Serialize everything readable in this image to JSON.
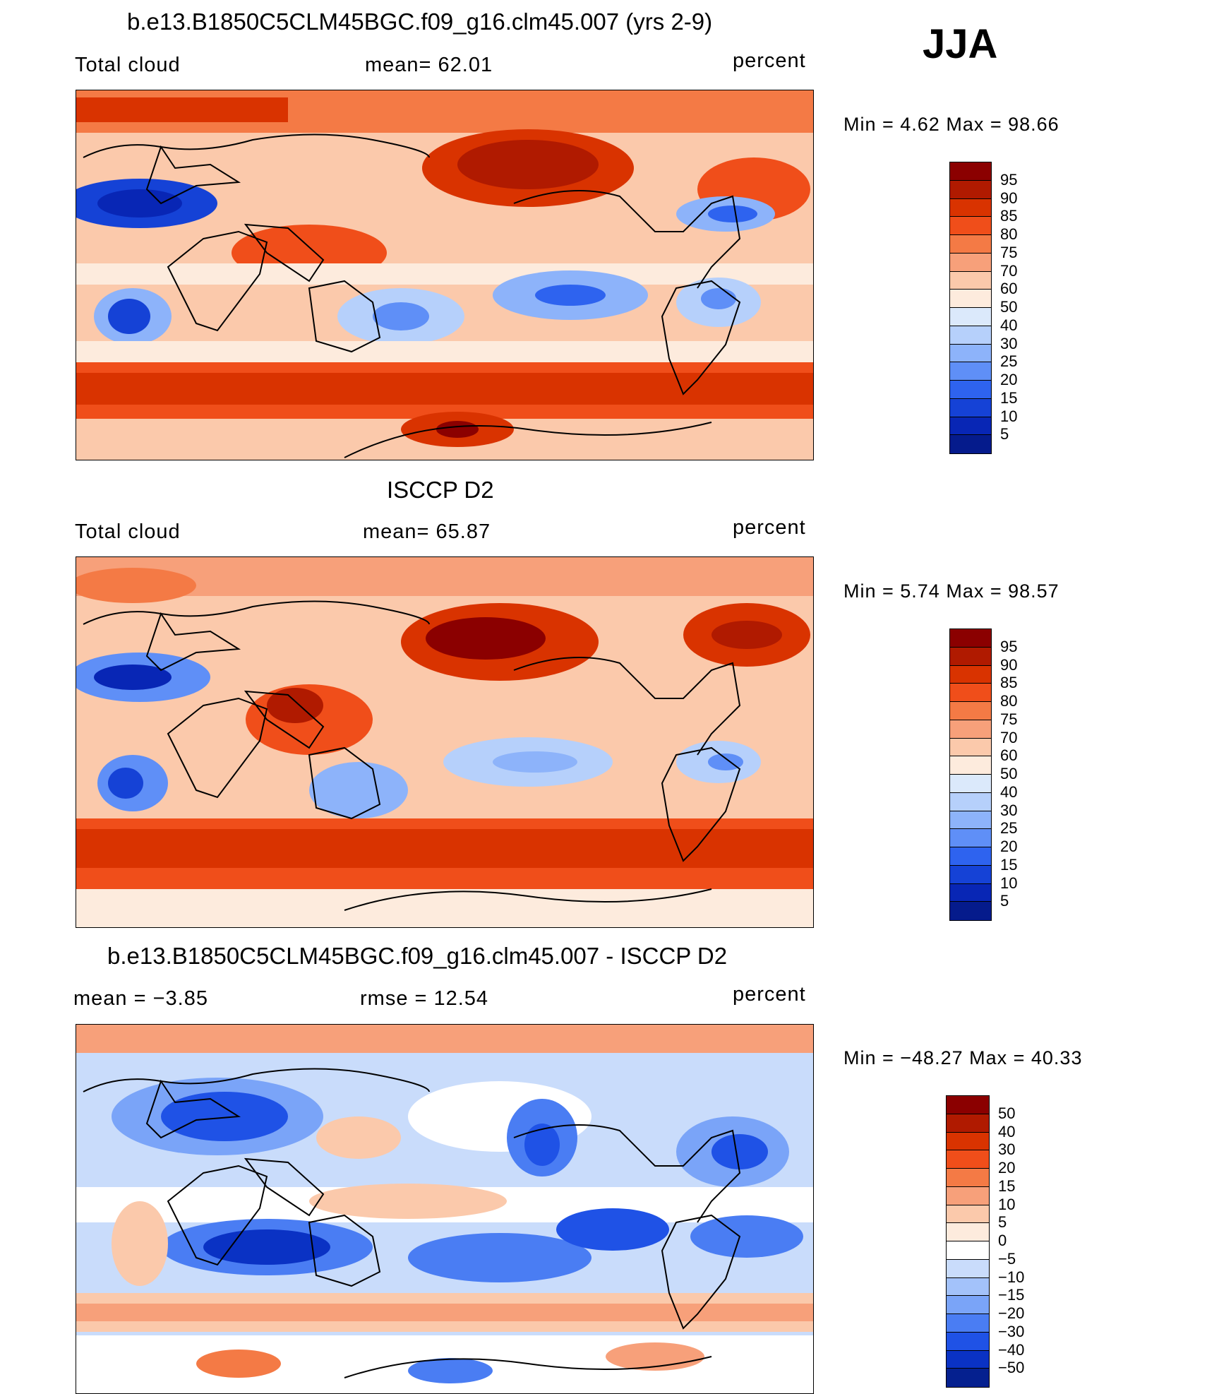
{
  "season": "JJA",
  "panels": [
    {
      "title": "b.e13.B1850C5CLM45BGC.f09_g16.clm45.007 (yrs 2-9)",
      "left_label": "Total cloud",
      "mid_label": "mean=   62.01",
      "units": "percent",
      "minmax": "Min  =      4.62  Max  =     98.66",
      "colorbar_ticks": [
        "95",
        "90",
        "85",
        "80",
        "75",
        "70",
        "60",
        "50",
        "40",
        "30",
        "25",
        "20",
        "15",
        "10",
        "5"
      ],
      "colorbar_colors": [
        "#8b0000",
        "#b01a00",
        "#d93300",
        "#f04e1a",
        "#f47a45",
        "#f7a07a",
        "#fbc9ab",
        "#fdebdd",
        "#dbe9fb",
        "#b6d0fb",
        "#8db3fa",
        "#5f8ff7",
        "#2e63ef",
        "#1542d6",
        "#0826b5",
        "#051b8c"
      ]
    },
    {
      "title": "ISCCP D2",
      "left_label": "Total cloud",
      "mid_label": "mean=   65.87",
      "units": "percent",
      "minmax": "Min  =      5.74  Max  =     98.57",
      "colorbar_ticks": [
        "95",
        "90",
        "85",
        "80",
        "75",
        "70",
        "60",
        "50",
        "40",
        "30",
        "25",
        "20",
        "15",
        "10",
        "5"
      ],
      "colorbar_colors": [
        "#8b0000",
        "#b01a00",
        "#d93300",
        "#f04e1a",
        "#f47a45",
        "#f7a07a",
        "#fbc9ab",
        "#fdebdd",
        "#dbe9fb",
        "#b6d0fb",
        "#8db3fa",
        "#5f8ff7",
        "#2e63ef",
        "#1542d6",
        "#0826b5",
        "#051b8c"
      ]
    },
    {
      "title": "b.e13.B1850C5CLM45BGC.f09_g16.clm45.007 - ISCCP D2",
      "left_label": "mean  =    −3.85",
      "mid_label": "rmse  =    12.54",
      "units": "percent",
      "minmax": "Min  = −48.27  Max  =    40.33",
      "colorbar_ticks": [
        "50",
        "40",
        "30",
        "20",
        "15",
        "10",
        "5",
        "0",
        "−5",
        "−10",
        "−15",
        "−20",
        "−30",
        "−40",
        "−50"
      ],
      "colorbar_colors": [
        "#8b0000",
        "#b01a00",
        "#d93300",
        "#f04e1a",
        "#f47a45",
        "#f7a07a",
        "#fbc9ab",
        "#fdebdd",
        "#ffffff",
        "#c9dcfb",
        "#a3c2fa",
        "#7aa4f8",
        "#4a7df3",
        "#1f52e6",
        "#0a32c4",
        "#05208f"
      ]
    }
  ]
}
